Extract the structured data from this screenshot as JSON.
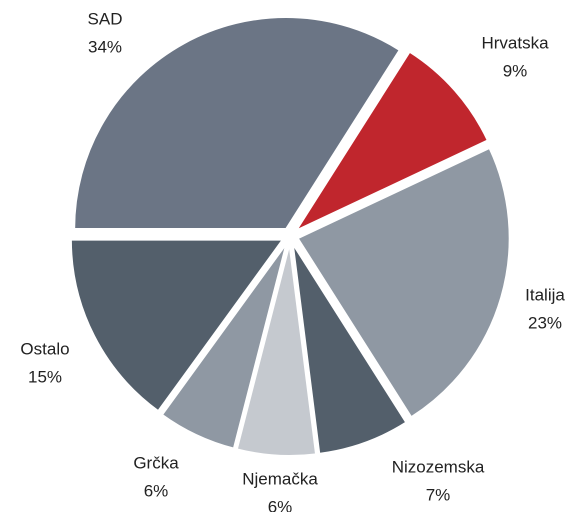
{
  "chart_data": {
    "type": "pie",
    "categories": [
      "SAD",
      "Hrvatska",
      "Italija",
      "Nizozemska",
      "Njemačka",
      "Grčka",
      "Ostalo"
    ],
    "values": [
      34,
      9,
      23,
      7,
      6,
      6,
      15
    ],
    "value_labels": [
      "34%",
      "9%",
      "23%",
      "7%",
      "6%",
      "6%",
      "15%"
    ],
    "colors": [
      "#6b7585",
      "#c0262d",
      "#8f98a3",
      "#535f6b",
      "#c5c9cf",
      "#8f98a3",
      "#535f6b"
    ]
  }
}
